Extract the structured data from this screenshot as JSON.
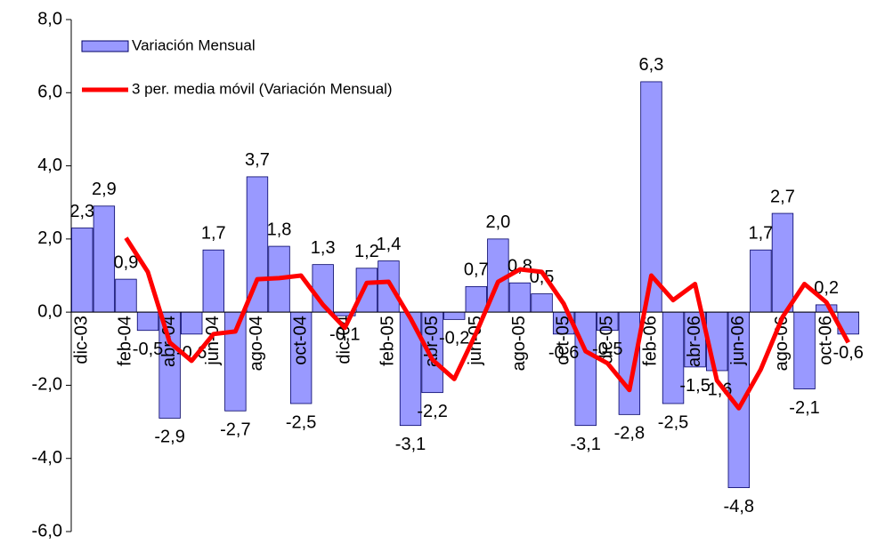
{
  "chart_data": {
    "type": "bar",
    "categories": [
      "dic-03",
      null,
      "feb-04",
      null,
      "abr-04",
      null,
      "jun-04",
      null,
      "ago-04",
      null,
      "oct-04",
      null,
      "dic-04",
      null,
      "feb-05",
      null,
      "abr-05",
      null,
      "jun-05",
      null,
      "ago-05",
      null,
      "oct-05",
      null,
      "dic-05",
      null,
      "feb-06",
      null,
      "abr-06",
      null,
      "jun-06",
      null,
      "ago-06",
      null,
      "oct-06",
      null
    ],
    "series": [
      {
        "name": "Variación Mensual",
        "type": "bar",
        "color": "#9999ff",
        "values": [
          2.3,
          2.9,
          0.9,
          -0.5,
          -2.9,
          -0.6,
          1.7,
          -2.7,
          3.7,
          1.8,
          -2.5,
          1.3,
          -0.1,
          1.2,
          1.4,
          -3.1,
          -2.2,
          -0.2,
          0.7,
          2.0,
          0.8,
          0.5,
          -0.6,
          -3.1,
          -0.5,
          -2.8,
          6.3,
          -2.5,
          -1.5,
          -1.6,
          -4.8,
          1.7,
          2.7,
          -2.1,
          0.2,
          -0.6
        ],
        "value_labels": [
          "2,3",
          "2,9",
          "0,9",
          "-0,5",
          "-2,9",
          "-0,6",
          "1,7",
          "-2,7",
          "3,7",
          "1,8",
          "-2,5",
          "1,3",
          "-0,1",
          "1,2",
          "1,4",
          "-3,1",
          "-2,2",
          "-0,2",
          "0,7",
          "2,0",
          "0,8",
          "0,5",
          "-0,6",
          "-3,1",
          "-0,5",
          "-2,8",
          "6,3",
          "-2,5",
          "-1,5",
          "-1,6",
          "-4,8",
          "1,7",
          "2,7",
          "-2,1",
          "0,2",
          "-0,6"
        ]
      },
      {
        "name": "3 per. media móvil (Variación Mensual)",
        "type": "line",
        "color": "#ff0000",
        "values": [
          null,
          null,
          2.03,
          1.1,
          -0.83,
          -1.33,
          -0.6,
          -0.53,
          0.9,
          0.93,
          1.0,
          0.2,
          -0.43,
          0.8,
          0.83,
          -0.17,
          -1.3,
          -1.83,
          -0.57,
          0.83,
          1.17,
          1.1,
          0.23,
          -1.07,
          -1.4,
          -2.13,
          1.0,
          0.33,
          0.77,
          -1.87,
          -2.63,
          -1.57,
          -0.13,
          0.77,
          0.27,
          -0.83
        ]
      }
    ],
    "ylim": [
      -6,
      8
    ],
    "yticks": [
      {
        "value": -6,
        "label": "-6,0"
      },
      {
        "value": -4,
        "label": "-4,0"
      },
      {
        "value": -2,
        "label": "-2,0"
      },
      {
        "value": 0,
        "label": "0,0"
      },
      {
        "value": 2,
        "label": "2,0"
      },
      {
        "value": 4,
        "label": "4,0"
      },
      {
        "value": 6,
        "label": "6,0"
      },
      {
        "value": 8,
        "label": "8,0"
      }
    ],
    "legend": "top-left",
    "grid": false
  }
}
